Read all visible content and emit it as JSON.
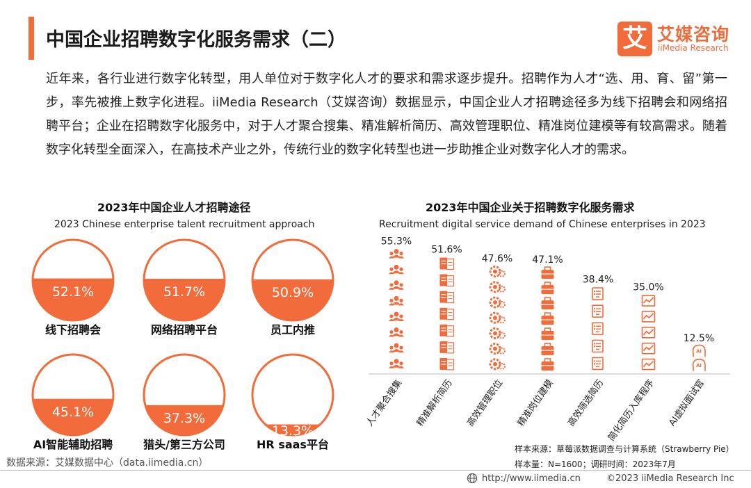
{
  "header": {
    "title": "中国企业招聘数字化服务需求（二）",
    "logo_mark": "艾",
    "logo_cn": "艾媒咨询",
    "logo_en": "iiMedia Research"
  },
  "intro_text": "近年来，各行业进行数字化转型，用人单位对于数字化人才的要求和需求逐步提升。招聘作为人才“选、用、育、留”第一步，率先被推上数字化进程。iiMedia Research（艾媒咨询）数据显示，中国企业人才招聘途径多为线下招聘会和网络招聘平台；企业在招聘数字化服务中，对于人才聚合搜集、精准解析简历、高效管理职位、精准岗位建模等有较高需求。随着数字化转型全面深入，在高技术产业之外，传统行业的数字化转型也进一步助推企业对数字化人才的需求。",
  "chart_data": [
    {
      "type": "pie",
      "title": "2023年中国企业人才招聘途径",
      "subtitle": "2023 Chinese enterprise talent recruitment approach",
      "categories": [
        "线下招聘会",
        "网络招聘平台",
        "员工内推",
        "AI智能辅助招聘",
        "猎头/第三方公司",
        "HR saas平台"
      ],
      "values": [
        52.1,
        51.7,
        50.9,
        45.1,
        37.3,
        13.3
      ],
      "labels": [
        "52.1%",
        "51.7%",
        "50.9%",
        "45.1%",
        "37.3%",
        "13.3%"
      ],
      "unit": "%"
    },
    {
      "type": "bar",
      "title": "2023年中国企业关于招聘数字化服务需求",
      "subtitle": "Recruitment digital service demand of Chinese enterprises in 2023",
      "categories": [
        "人才聚合搜集",
        "精准解析简历",
        "高效管理职位",
        "精准岗位建模",
        "高效筛选简历",
        "简化简历入库程序",
        "AI虚拟面试官"
      ],
      "values": [
        55.3,
        51.6,
        47.6,
        47.1,
        38.4,
        35.0,
        12.5
      ],
      "labels": [
        "55.3%",
        "51.6%",
        "47.6%",
        "47.1%",
        "38.4%",
        "35.0%",
        "12.5%"
      ],
      "icons": [
        "people-group-icon",
        "resume-cn-en-icon",
        "gear-person-icon",
        "briefcase-icon",
        "checklist-icon",
        "chart-document-icon",
        "ai-head-icon"
      ],
      "ylim": [
        0,
        60
      ],
      "unit": "%"
    }
  ],
  "notes": {
    "sample_source": "样本来源：草莓派数据调查与计算系统（Strawberry Pie）",
    "sample_size": "样本量：N=1600；调研时间：2023年7月"
  },
  "footer": {
    "data_source": "数据来源：艾媒数据中心（data.iimedia.cn）",
    "url": "http://www.iimedia.cn",
    "copyright": "©2023  iiMedia Research  Inc"
  },
  "colors": {
    "accent": "#f26b3a",
    "circle_border": "#f26b3a"
  }
}
